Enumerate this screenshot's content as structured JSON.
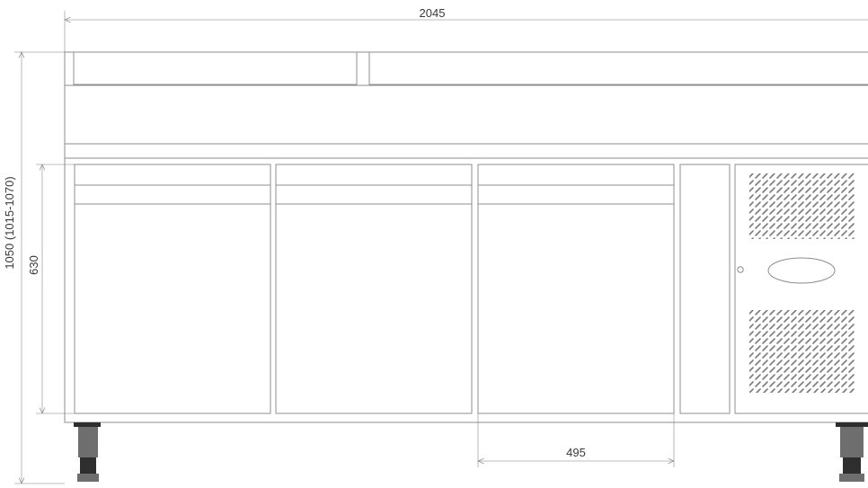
{
  "dimensions": {
    "overall_width": "2045",
    "overall_height": "1050 (1015-1070)",
    "door_height": "630",
    "door_width": "495"
  }
}
